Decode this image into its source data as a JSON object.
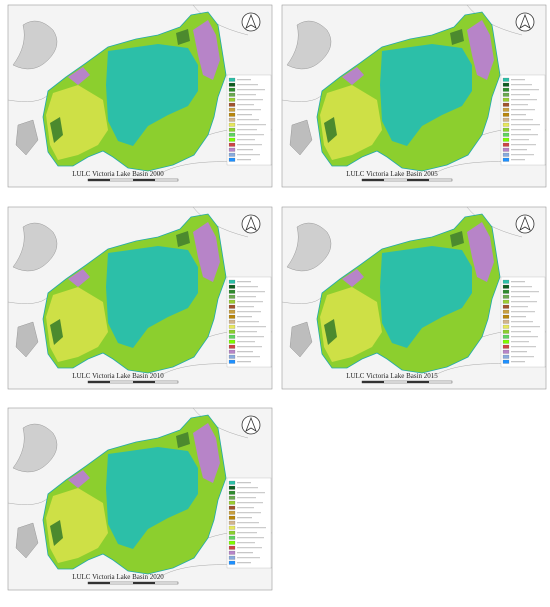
{
  "panels": [
    {
      "title": "LULC Victoria Lake Basin 2000"
    },
    {
      "title": "LULC Victoria Lake Basin 2005"
    },
    {
      "title": "LULC Victoria Lake Basin 2010"
    },
    {
      "title": "LULC Victoria Lake Basin 2015"
    },
    {
      "title": "LULC Victoria Lake Basin 2020"
    }
  ]
}
